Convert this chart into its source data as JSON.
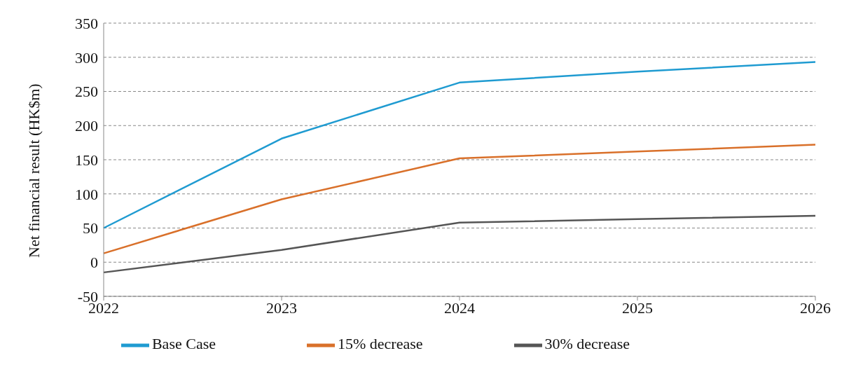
{
  "chart_data": {
    "type": "line",
    "ylabel": "Net financial result (HK$m)",
    "categories": [
      "2022",
      "2023",
      "2024",
      "2025",
      "2026"
    ],
    "series": [
      {
        "name": "Base Case",
        "color": "#1f9bd1",
        "values": [
          50,
          181,
          263,
          279,
          293
        ]
      },
      {
        "name": "15% decrease",
        "color": "#d9702a",
        "values": [
          13,
          92,
          152,
          162,
          172
        ]
      },
      {
        "name": "30% decrease",
        "color": "#555555",
        "values": [
          -15,
          18,
          58,
          63,
          68
        ]
      }
    ],
    "ylim": [
      -50,
      350
    ],
    "yticks": [
      -50,
      0,
      50,
      100,
      150,
      200,
      250,
      300,
      350
    ],
    "grid": "y",
    "legend": "bottom",
    "marker": "none",
    "line_style": "solid"
  }
}
